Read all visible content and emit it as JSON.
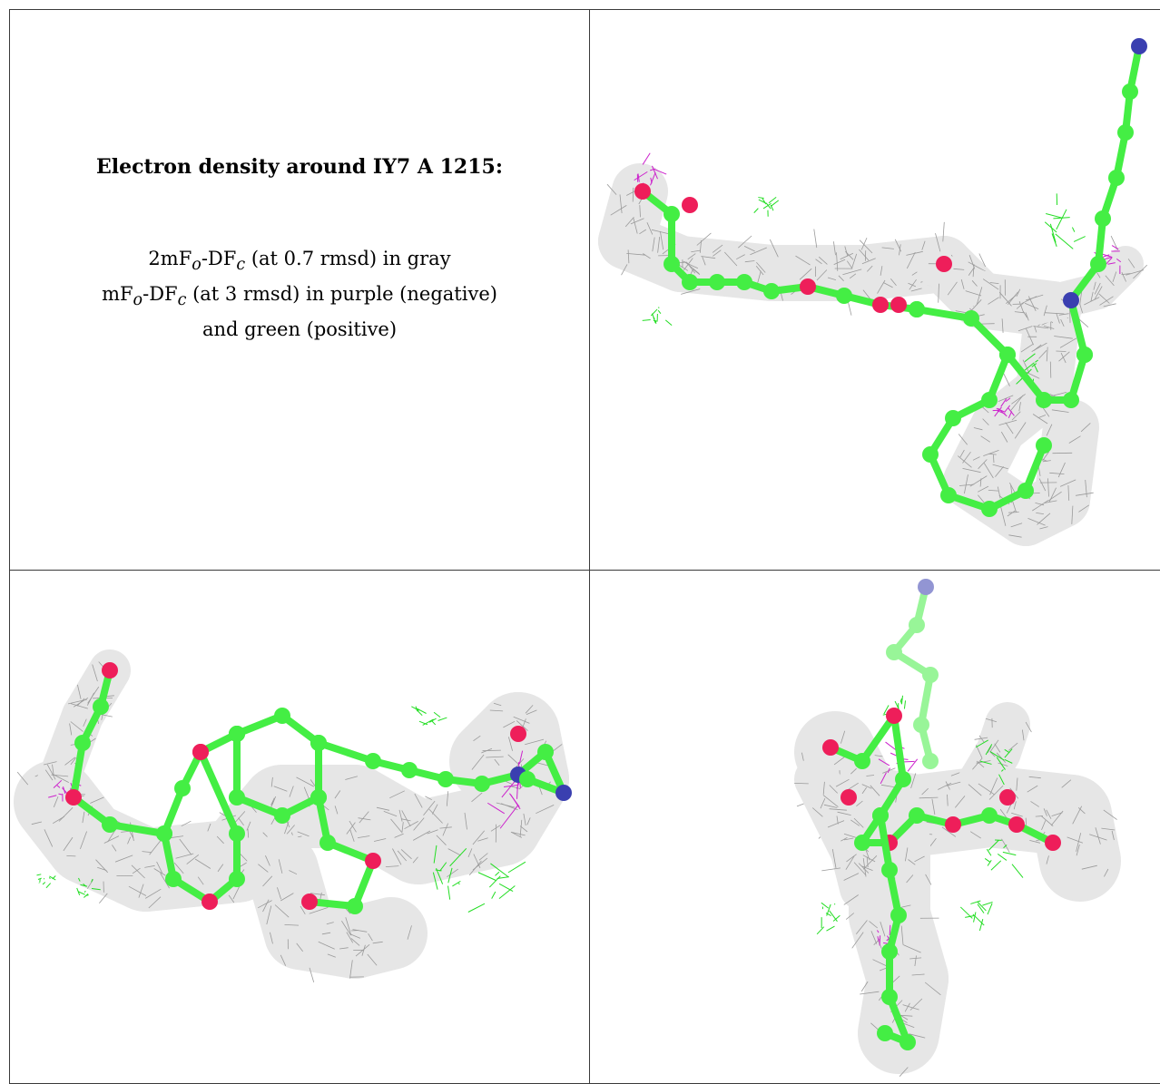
{
  "caption": {
    "title": "Electron density around IY7 A 1215:",
    "line1_prefix": "2mF",
    "line1_sub1": "o",
    "line1_mid": "-DF",
    "line1_sub2": "c",
    "line1_suffix": " (at 0.7 rmsd) in gray",
    "line2_prefix": "mF",
    "line2_sub1": "o",
    "line2_mid": "-DF",
    "line2_sub2": "c",
    "line2_suffix": " (at 3 rmsd) in purple (negative)",
    "line3": "and green (positive)"
  },
  "colors": {
    "mesh_gray": "#9a9a9a",
    "carbon_green": "#44ee44",
    "oxygen_red": "#ee1e5a",
    "nitrogen_blue": "#3a3fb0",
    "positive_green": "#22dd22",
    "negative_purple": "#cc22cc",
    "border": "#3a3a3a"
  }
}
